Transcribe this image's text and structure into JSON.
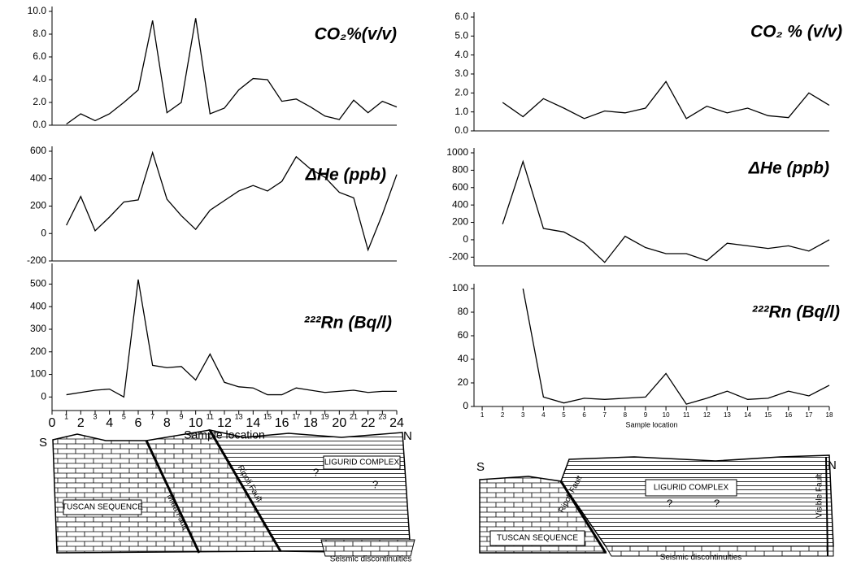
{
  "chart_data": [
    {
      "type": "line",
      "title": "CO₂%(v/v)",
      "color": "#000000",
      "x": [
        1,
        2,
        3,
        4,
        5,
        6,
        7,
        8,
        9,
        10,
        11,
        12,
        13,
        14,
        15,
        16,
        17,
        18,
        19,
        20,
        21,
        22,
        23,
        24
      ],
      "values": [
        0.1,
        1.0,
        0.4,
        1.0,
        2.0,
        3.1,
        9.2,
        1.1,
        2.0,
        9.4,
        1.0,
        1.5,
        3.1,
        4.1,
        4.0,
        2.1,
        2.3,
        1.6,
        0.8,
        0.5,
        2.2,
        1.1,
        2.1,
        1.6
      ],
      "xlim": [
        0,
        24
      ],
      "ylim": [
        0,
        10
      ],
      "yticks": [
        {
          "value": 0,
          "label": "0.0"
        },
        {
          "value": 2,
          "label": "2.0"
        },
        {
          "value": 4,
          "label": "4.0"
        },
        {
          "value": 6,
          "label": "6.0"
        },
        {
          "value": 8,
          "label": "8.0"
        },
        {
          "value": 10,
          "label": "10.0"
        }
      ]
    },
    {
      "type": "line",
      "title": "ΔHe (ppb)",
      "color": "#000000",
      "x": [
        1,
        2,
        3,
        4,
        5,
        6,
        7,
        8,
        9,
        10,
        11,
        12,
        13,
        14,
        15,
        16,
        17,
        18,
        19,
        20,
        21,
        22,
        23,
        24
      ],
      "values": [
        60,
        270,
        20,
        120,
        230,
        245,
        590,
        250,
        130,
        30,
        170,
        240,
        310,
        350,
        310,
        380,
        560,
        470,
        410,
        300,
        260,
        -120,
        140,
        430
      ],
      "xlim": [
        0,
        24
      ],
      "ylim": [
        -200,
        600
      ],
      "yticks": [
        -200,
        0,
        200,
        400,
        600
      ]
    },
    {
      "type": "line",
      "title": "²²²Rn (Bq/l)",
      "color": "#000000",
      "x": [
        1,
        2,
        3,
        4,
        5,
        6,
        7,
        8,
        9,
        10,
        11,
        12,
        13,
        14,
        15,
        16,
        17,
        18,
        19,
        20,
        21,
        22,
        23,
        24
      ],
      "values": [
        10,
        20,
        30,
        35,
        0,
        520,
        140,
        130,
        135,
        75,
        190,
        65,
        45,
        40,
        10,
        10,
        40,
        30,
        20,
        25,
        30,
        20,
        25,
        25
      ],
      "xlim": [
        0,
        24
      ],
      "ylim": [
        -60,
        570
      ],
      "yticks": [
        0,
        100,
        200,
        300,
        400,
        500
      ],
      "xticks": [
        0,
        1,
        2,
        3,
        4,
        5,
        6,
        7,
        8,
        9,
        10,
        11,
        12,
        13,
        14,
        15,
        16,
        17,
        18,
        19,
        20,
        21,
        22,
        23,
        24
      ],
      "xlabel": "Sample location"
    },
    {
      "type": "line",
      "title": "CO₂ % (v/v)",
      "color": "#000000",
      "x": [
        2,
        3,
        4,
        5,
        6,
        7,
        8,
        9,
        10,
        11,
        12,
        13,
        14,
        15,
        16,
        17,
        18
      ],
      "values": [
        1.5,
        0.75,
        1.7,
        1.2,
        0.65,
        1.05,
        0.95,
        1.2,
        2.6,
        0.65,
        1.3,
        0.95,
        1.2,
        0.8,
        0.7,
        2.0,
        1.35
      ],
      "xlim": [
        0.6,
        18
      ],
      "ylim": [
        0,
        6
      ],
      "yticks": [
        {
          "value": 0,
          "label": "0.0"
        },
        {
          "value": 1,
          "label": "1.0"
        },
        {
          "value": 2,
          "label": "2.0"
        },
        {
          "value": 3,
          "label": "3.0"
        },
        {
          "value": 4,
          "label": "4.0"
        },
        {
          "value": 5,
          "label": "5.0"
        },
        {
          "value": 6,
          "label": "6.0"
        }
      ]
    },
    {
      "type": "line",
      "title": "ΔHe (ppb)",
      "color": "#000000",
      "x": [
        2,
        3,
        4,
        5,
        6,
        7,
        8,
        9,
        10,
        11,
        12,
        13,
        14,
        15,
        16,
        17,
        18
      ],
      "values": [
        180,
        900,
        130,
        90,
        -40,
        -260,
        40,
        -90,
        -160,
        -160,
        -240,
        -40,
        -70,
        -100,
        -70,
        -130,
        0
      ],
      "xlim": [
        0.6,
        18
      ],
      "ylim": [
        -300,
        1000
      ],
      "yticks": [
        -200,
        0,
        200,
        400,
        600,
        800,
        1000
      ]
    },
    {
      "type": "line",
      "title": "²²²Rn (Bq/l)",
      "color": "#000000",
      "x": [
        3,
        4,
        5,
        6,
        7,
        8,
        9,
        10,
        11,
        12,
        13,
        14,
        15,
        16,
        17,
        18
      ],
      "values": [
        100,
        8,
        3,
        7,
        6,
        7,
        8,
        28,
        2,
        7,
        13,
        6,
        7,
        13,
        9,
        18
      ],
      "xlim": [
        0.6,
        18
      ],
      "ylim": [
        0,
        100
      ],
      "yticks": [
        0,
        20,
        40,
        60,
        80,
        100
      ],
      "xticks": [
        1,
        2,
        3,
        4,
        5,
        6,
        7,
        8,
        9,
        10,
        11,
        12,
        13,
        14,
        15,
        16,
        17,
        18
      ],
      "xlabel": "Sample location"
    }
  ],
  "sections": [
    {
      "labels": [
        "S",
        "N",
        "TUSCAN SEQUENCE",
        "LIGURID COMPLEX",
        "Mitra Fault",
        "Ripoli Fault",
        "?",
        "?",
        "Seismic discontinuities"
      ]
    },
    {
      "labels": [
        "S",
        "N",
        "TUSCAN SEQUENCE",
        "LIGURID COMPLEX",
        "Ripoli Fault",
        "Visible Fault",
        "?",
        "?",
        "Seismic discontinuities"
      ]
    }
  ]
}
